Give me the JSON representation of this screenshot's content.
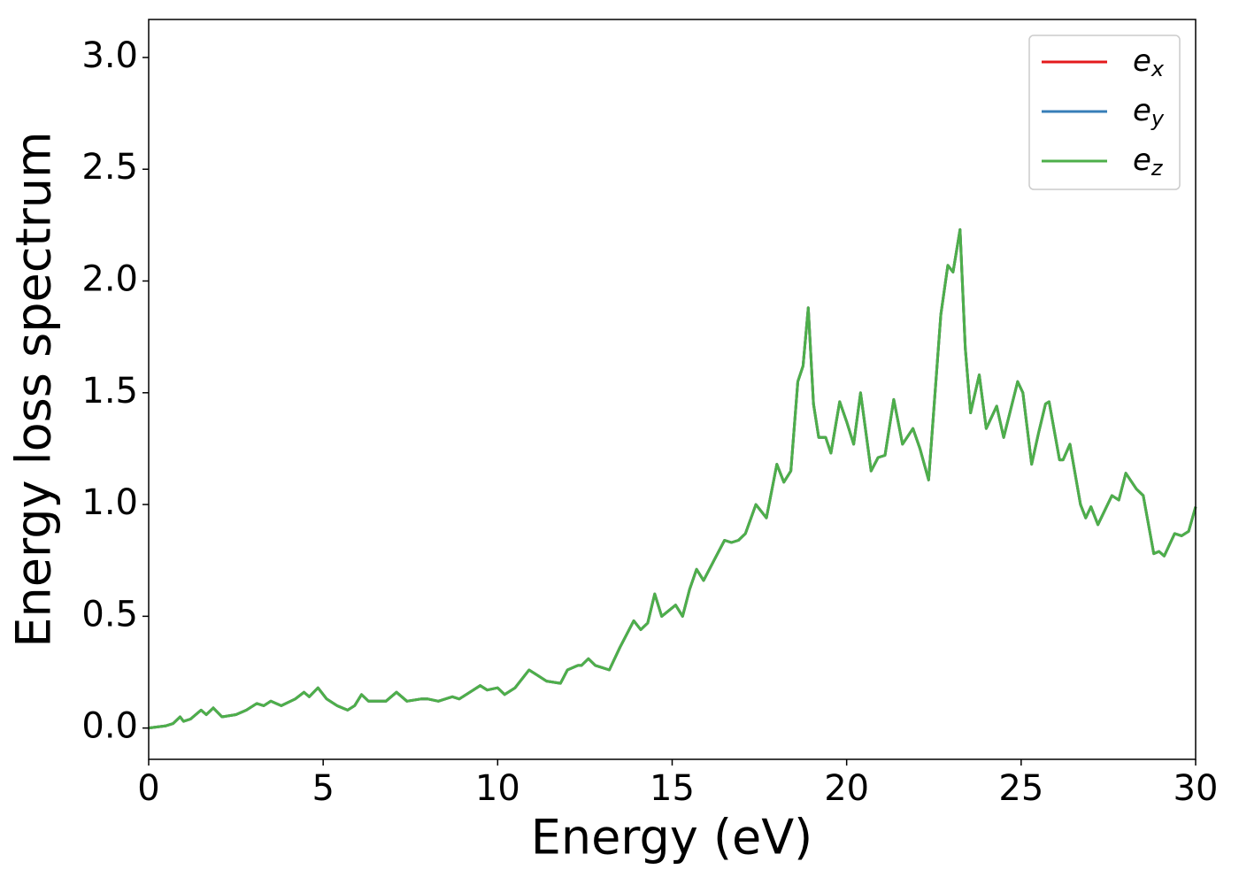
{
  "chart_data": {
    "type": "line",
    "xlabel": "Energy (eV)",
    "ylabel": "Energy loss spectrum",
    "xlim": [
      0,
      30
    ],
    "ylim": [
      -0.14,
      3.17
    ],
    "xticks": [
      0,
      5,
      10,
      15,
      20,
      25,
      30
    ],
    "yticks": [
      {
        "value": 0,
        "label": "0.0"
      },
      0.5,
      {
        "value": 1,
        "label": "1.0"
      },
      1.5,
      {
        "value": 2,
        "label": "2.0"
      },
      2.5,
      {
        "value": 3,
        "label": "3.0"
      }
    ],
    "grid": false,
    "legend": "upper right",
    "x": [
      0,
      0.5,
      0.7,
      0.9,
      1.0,
      1.2,
      1.5,
      1.65,
      1.85,
      2.1,
      2.5,
      2.8,
      3.1,
      3.3,
      3.5,
      3.8,
      4.2,
      4.45,
      4.6,
      4.85,
      5.1,
      5.4,
      5.7,
      5.9,
      6.1,
      6.3,
      6.8,
      7.1,
      7.4,
      7.8,
      8.0,
      8.3,
      8.7,
      8.9,
      9.2,
      9.5,
      9.7,
      10.0,
      10.2,
      10.5,
      10.9,
      11.1,
      11.4,
      11.8,
      12.0,
      12.3,
      12.4,
      12.6,
      12.8,
      13.0,
      13.2,
      13.5,
      13.9,
      14.1,
      14.3,
      14.5,
      14.7,
      15.1,
      15.3,
      15.5,
      15.7,
      15.9,
      16.2,
      16.5,
      16.7,
      16.9,
      17.1,
      17.4,
      17.7,
      18.0,
      18.2,
      18.4,
      18.6,
      18.75,
      18.9,
      19.05,
      19.2,
      19.4,
      19.55,
      19.8,
      20.0,
      20.2,
      20.4,
      20.7,
      20.9,
      21.1,
      21.35,
      21.6,
      21.9,
      22.1,
      22.35,
      22.7,
      22.9,
      23.05,
      23.25,
      23.4,
      23.55,
      23.8,
      24.0,
      24.3,
      24.5,
      24.9,
      25.05,
      25.3,
      25.5,
      25.7,
      25.8,
      26.1,
      26.2,
      26.4,
      26.7,
      26.85,
      27.0,
      27.2,
      27.6,
      27.8,
      28.0,
      28.3,
      28.5,
      28.8,
      28.95,
      29.1,
      29.4,
      29.6,
      29.8,
      30.0
    ],
    "series": [
      {
        "name": "ex",
        "color": "#e41a1c",
        "values": [
          0,
          0.01,
          0.02,
          0.05,
          0.03,
          0.04,
          0.08,
          0.06,
          0.09,
          0.05,
          0.06,
          0.08,
          0.11,
          0.1,
          0.12,
          0.1,
          0.13,
          0.16,
          0.14,
          0.18,
          0.13,
          0.1,
          0.08,
          0.1,
          0.15,
          0.12,
          0.12,
          0.16,
          0.12,
          0.13,
          0.13,
          0.12,
          0.14,
          0.13,
          0.16,
          0.19,
          0.17,
          0.18,
          0.15,
          0.18,
          0.26,
          0.24,
          0.21,
          0.2,
          0.26,
          0.28,
          0.28,
          0.31,
          0.28,
          0.27,
          0.26,
          0.36,
          0.48,
          0.44,
          0.47,
          0.6,
          0.5,
          0.55,
          0.5,
          0.62,
          0.71,
          0.66,
          0.75,
          0.84,
          0.83,
          0.84,
          0.87,
          1.0,
          0.94,
          1.18,
          1.1,
          1.15,
          1.55,
          1.62,
          1.88,
          1.45,
          1.3,
          1.3,
          1.23,
          1.46,
          1.37,
          1.27,
          1.5,
          1.15,
          1.21,
          1.22,
          1.47,
          1.27,
          1.34,
          1.25,
          1.11,
          1.85,
          2.07,
          2.04,
          2.23,
          1.7,
          1.41,
          1.58,
          1.34,
          1.44,
          1.3,
          1.55,
          1.5,
          1.18,
          1.32,
          1.45,
          1.46,
          1.2,
          1.2,
          1.27,
          1.0,
          0.94,
          0.99,
          0.91,
          1.04,
          1.02,
          1.14,
          1.07,
          1.04,
          0.78,
          0.79,
          0.77,
          0.87,
          0.86,
          0.88,
          0.99
        ]
      },
      {
        "name": "ey",
        "color": "#377eb8",
        "values": [
          0,
          0.01,
          0.02,
          0.05,
          0.03,
          0.04,
          0.08,
          0.06,
          0.09,
          0.05,
          0.06,
          0.08,
          0.11,
          0.1,
          0.12,
          0.1,
          0.13,
          0.16,
          0.14,
          0.18,
          0.13,
          0.1,
          0.08,
          0.1,
          0.15,
          0.12,
          0.12,
          0.16,
          0.12,
          0.13,
          0.13,
          0.12,
          0.14,
          0.13,
          0.16,
          0.19,
          0.17,
          0.18,
          0.15,
          0.18,
          0.26,
          0.24,
          0.21,
          0.2,
          0.26,
          0.28,
          0.28,
          0.31,
          0.28,
          0.27,
          0.26,
          0.36,
          0.48,
          0.44,
          0.47,
          0.6,
          0.5,
          0.55,
          0.5,
          0.62,
          0.71,
          0.66,
          0.75,
          0.84,
          0.83,
          0.84,
          0.87,
          1.0,
          0.94,
          1.18,
          1.1,
          1.15,
          1.55,
          1.62,
          1.88,
          1.45,
          1.3,
          1.3,
          1.23,
          1.46,
          1.37,
          1.27,
          1.5,
          1.15,
          1.21,
          1.22,
          1.47,
          1.27,
          1.34,
          1.25,
          1.11,
          1.85,
          2.07,
          2.04,
          2.23,
          1.7,
          1.41,
          1.58,
          1.34,
          1.44,
          1.3,
          1.55,
          1.5,
          1.18,
          1.32,
          1.45,
          1.46,
          1.2,
          1.2,
          1.27,
          1.0,
          0.94,
          0.99,
          0.91,
          1.04,
          1.02,
          1.14,
          1.07,
          1.04,
          0.78,
          0.79,
          0.77,
          0.87,
          0.86,
          0.88,
          0.99
        ]
      },
      {
        "name": "ez",
        "color": "#4daf4a",
        "values": [
          0,
          0.01,
          0.02,
          0.05,
          0.03,
          0.04,
          0.08,
          0.06,
          0.09,
          0.05,
          0.06,
          0.08,
          0.11,
          0.1,
          0.12,
          0.1,
          0.13,
          0.16,
          0.14,
          0.18,
          0.13,
          0.1,
          0.08,
          0.1,
          0.15,
          0.12,
          0.12,
          0.16,
          0.12,
          0.13,
          0.13,
          0.12,
          0.14,
          0.13,
          0.16,
          0.19,
          0.17,
          0.18,
          0.15,
          0.18,
          0.26,
          0.24,
          0.21,
          0.2,
          0.26,
          0.28,
          0.28,
          0.31,
          0.28,
          0.27,
          0.26,
          0.36,
          0.48,
          0.44,
          0.47,
          0.6,
          0.5,
          0.55,
          0.5,
          0.62,
          0.71,
          0.66,
          0.75,
          0.84,
          0.83,
          0.84,
          0.87,
          1.0,
          0.94,
          1.18,
          1.1,
          1.15,
          1.55,
          1.62,
          1.88,
          1.45,
          1.3,
          1.3,
          1.23,
          1.46,
          1.37,
          1.27,
          1.5,
          1.15,
          1.21,
          1.22,
          1.47,
          1.27,
          1.34,
          1.25,
          1.11,
          1.85,
          2.07,
          2.04,
          2.23,
          1.7,
          1.41,
          1.58,
          1.34,
          1.44,
          1.3,
          1.55,
          1.5,
          1.18,
          1.32,
          1.45,
          1.46,
          1.2,
          1.2,
          1.27,
          1.0,
          0.94,
          0.99,
          0.91,
          1.04,
          1.02,
          1.14,
          1.07,
          1.04,
          0.78,
          0.79,
          0.77,
          0.87,
          0.86,
          0.88,
          0.99
        ]
      }
    ]
  }
}
